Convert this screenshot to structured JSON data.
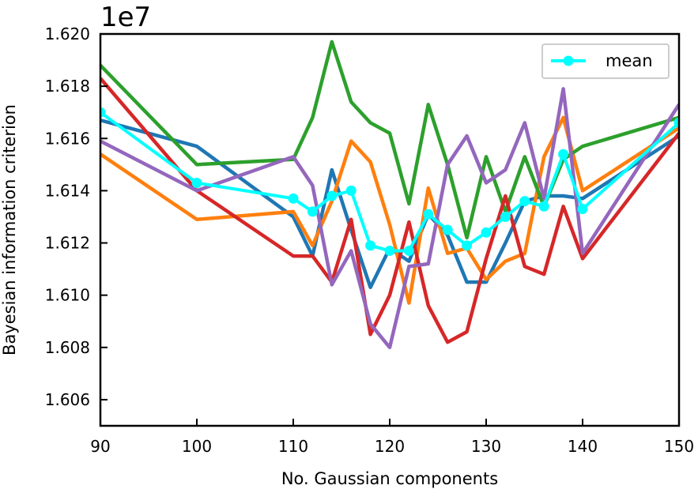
{
  "chart_data": {
    "type": "line",
    "xlabel": "No. Gaussian components",
    "ylabel": "Bayesian information criterion",
    "offset_label": "1e7",
    "scale_factor": 10000000,
    "xlim": [
      90,
      150
    ],
    "ylim": [
      1.605,
      1.62
    ],
    "xticks": [
      90,
      100,
      110,
      120,
      130,
      140,
      150
    ],
    "xtick_labels": [
      "90",
      "100",
      "110",
      "120",
      "130",
      "140",
      "150"
    ],
    "yticks": [
      1.606,
      1.608,
      1.61,
      1.612,
      1.614,
      1.616,
      1.618,
      1.62
    ],
    "ytick_labels": [
      "1.606",
      "1.608",
      "1.610",
      "1.612",
      "1.614",
      "1.616",
      "1.618",
      "1.620"
    ],
    "grid": false,
    "legend_position": "top-right",
    "x": [
      90,
      100,
      110,
      112,
      114,
      116,
      118,
      120,
      122,
      124,
      126,
      128,
      130,
      132,
      134,
      136,
      138,
      140,
      150
    ],
    "series": [
      {
        "color": "#1f77b4",
        "marker": false,
        "values": [
          1.6167,
          1.6157,
          1.613,
          1.6115,
          1.6148,
          1.6125,
          1.6103,
          1.6118,
          1.6113,
          1.6131,
          1.6123,
          1.6105,
          1.6105,
          1.612,
          1.6136,
          1.6138,
          1.6138,
          1.6137,
          1.6161
        ]
      },
      {
        "color": "#ff7f0e",
        "marker": false,
        "values": [
          1.6154,
          1.6129,
          1.6132,
          1.6119,
          1.6136,
          1.6159,
          1.6151,
          1.6127,
          1.6097,
          1.6141,
          1.6116,
          1.6118,
          1.6106,
          1.6113,
          1.6116,
          1.6153,
          1.6168,
          1.614,
          1.6164
        ]
      },
      {
        "color": "#2ca02c",
        "marker": false,
        "values": [
          1.6188,
          1.615,
          1.6152,
          1.6168,
          1.6197,
          1.6174,
          1.6166,
          1.6162,
          1.6135,
          1.6173,
          1.615,
          1.6122,
          1.6153,
          1.6132,
          1.6153,
          1.6134,
          1.6152,
          1.6157,
          1.6168
        ]
      },
      {
        "color": "#d62728",
        "marker": false,
        "values": [
          1.6183,
          1.614,
          1.6115,
          1.6115,
          1.6105,
          1.6129,
          1.6085,
          1.61,
          1.6128,
          1.6096,
          1.6082,
          1.6086,
          1.6114,
          1.6138,
          1.6111,
          1.6108,
          1.6134,
          1.6114,
          1.6162
        ]
      },
      {
        "color": "#9467bd",
        "marker": false,
        "values": [
          1.6159,
          1.614,
          1.6153,
          1.6142,
          1.6104,
          1.6117,
          1.6089,
          1.608,
          1.6111,
          1.6112,
          1.615,
          1.6161,
          1.6143,
          1.6148,
          1.6166,
          1.6137,
          1.6179,
          1.6116,
          1.6173
        ]
      },
      {
        "name": "mean",
        "color": "#00ffff",
        "marker": true,
        "values": [
          1.617,
          1.6143,
          1.6137,
          1.6132,
          1.6138,
          1.614,
          1.6119,
          1.6117,
          1.6117,
          1.6131,
          1.6125,
          1.6119,
          1.6124,
          1.613,
          1.6136,
          1.6134,
          1.6154,
          1.6133,
          1.6166
        ]
      }
    ]
  }
}
